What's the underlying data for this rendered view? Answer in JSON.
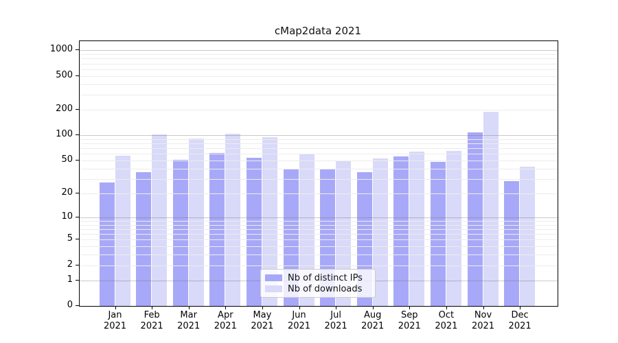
{
  "title": "cMap2data 2021",
  "chart_data": {
    "type": "bar",
    "title": "cMap2data 2021",
    "x_axis": {
      "categories": [
        "Jan",
        "Feb",
        "Mar",
        "Apr",
        "May",
        "Jun",
        "Jul",
        "Aug",
        "Sep",
        "Oct",
        "Nov",
        "Dec"
      ],
      "year": "2021"
    },
    "y_axis": {
      "scale": "log1p",
      "tick_values": [
        0,
        1,
        2,
        5,
        10,
        20,
        50,
        100,
        200,
        500,
        1000
      ],
      "tick_labels": [
        "0",
        "1",
        "2",
        "5",
        "10",
        "20",
        "50",
        "100",
        "200",
        "500",
        "1000"
      ],
      "range": [
        0,
        1280
      ],
      "major_gridlines_at": [
        1,
        10,
        100,
        1000
      ],
      "grid": "on"
    },
    "series": [
      {
        "name": "Nb of distinct IPs",
        "color": "#a8a8f8",
        "values": [
          27,
          36,
          51,
          61,
          54,
          40,
          39,
          36,
          56,
          48,
          107,
          28
        ]
      },
      {
        "name": "Nb of downloads",
        "color": "#d9d9f9",
        "values": [
          57,
          102,
          92,
          103,
          94,
          60,
          50,
          53,
          64,
          65,
          190,
          42
        ]
      }
    ],
    "legend": {
      "position": "lower center"
    }
  }
}
